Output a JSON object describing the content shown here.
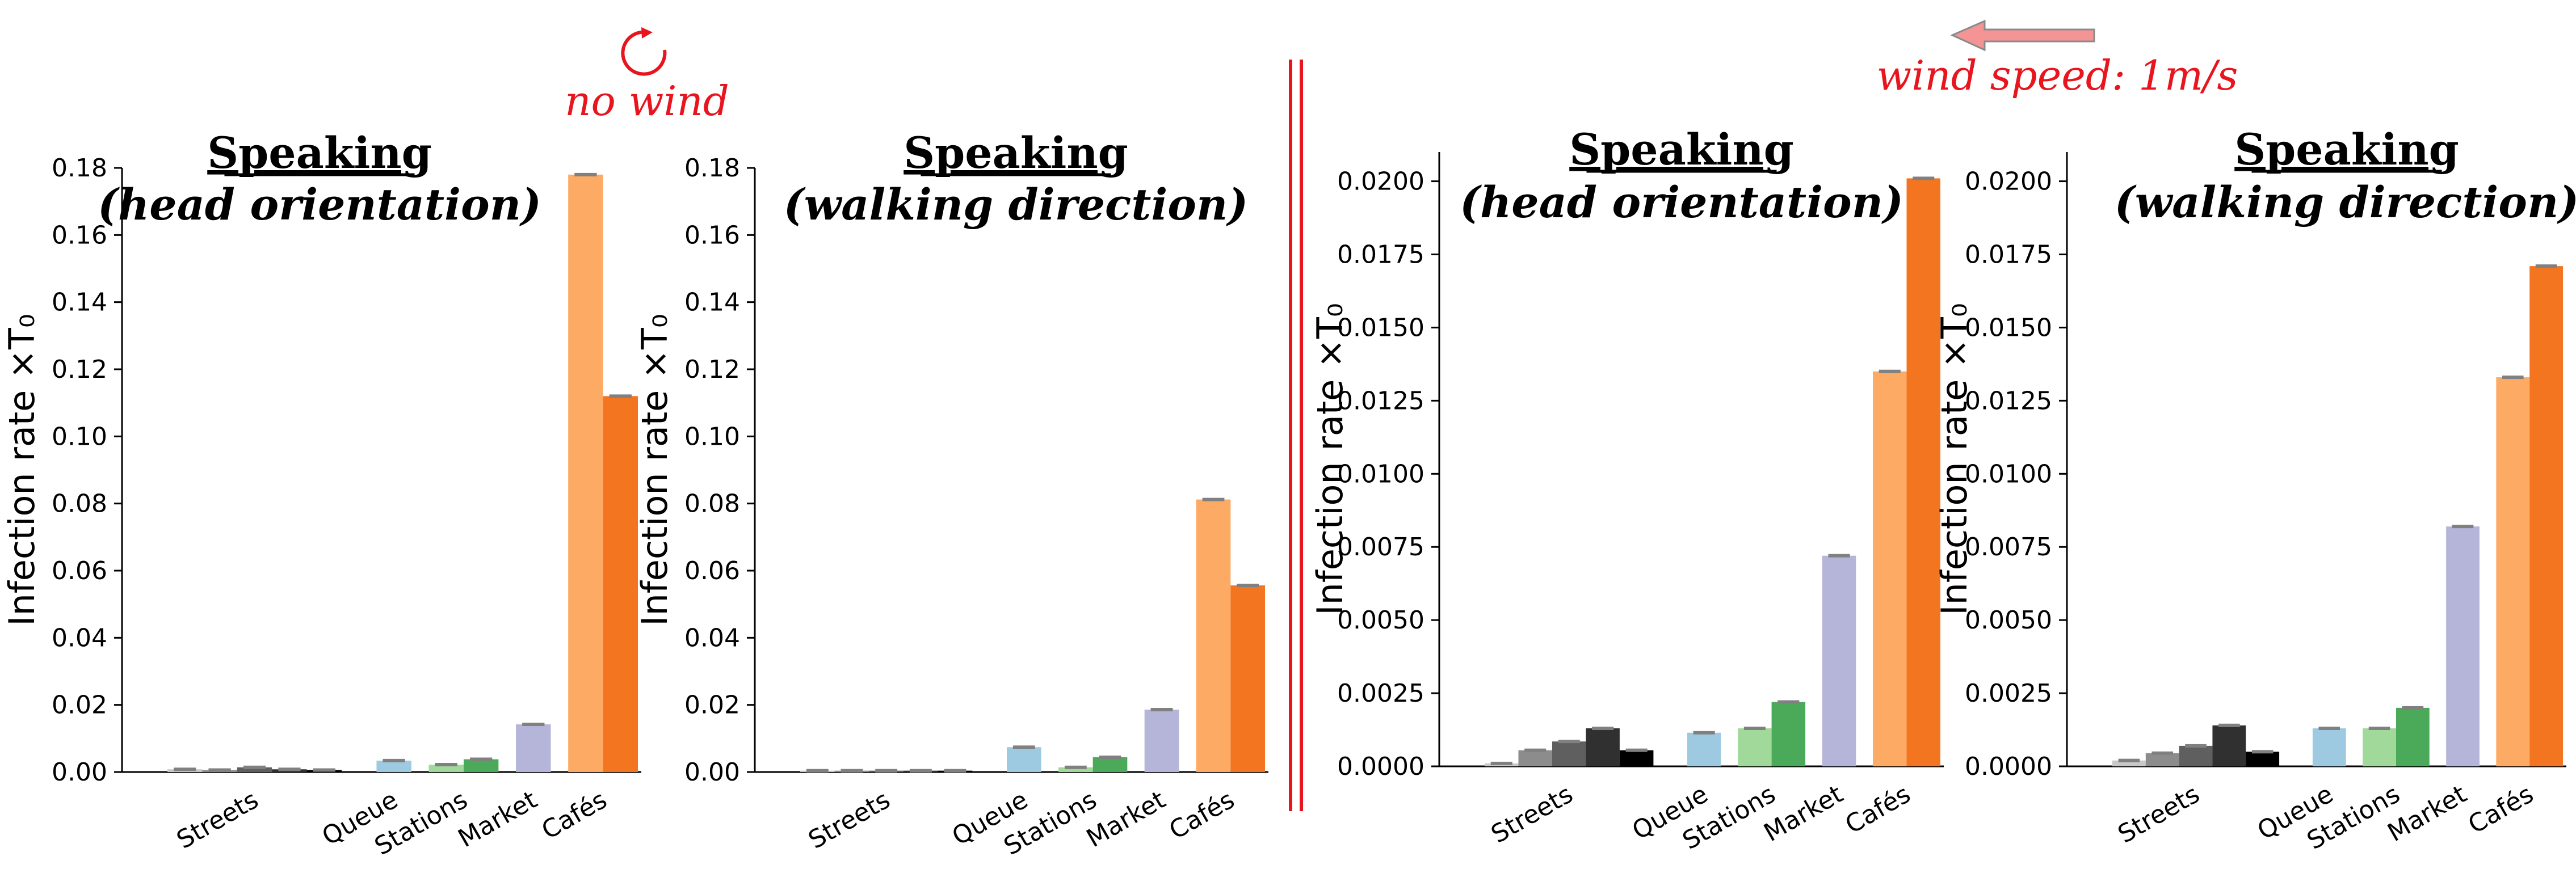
{
  "annotations": {
    "no_wind": "no wind",
    "wind_speed": "wind speed: 1m/s"
  },
  "colors": {
    "street_shades": [
      "#c8c8c8",
      "#8c8c8c",
      "#5f5f5f",
      "#303030",
      "#000000"
    ],
    "queue": "#9ecae1",
    "stations": [
      "#a1d99b",
      "#4aaa5a"
    ],
    "market": "#b5b5d9",
    "cafes": [
      "#fdaa65",
      "#f47520"
    ],
    "error_bar": "#808080",
    "annotation_red": "#e8141e",
    "arrow_fill": "#f49494"
  },
  "chart_data": [
    {
      "type": "bar",
      "panel": "no-wind-head-orientation",
      "title_line1": "Speaking",
      "title_line2": "(head orientation)",
      "ylabel": "Infection rate ×T₀",
      "ylim": [
        0,
        0.18
      ],
      "yticks": [
        "0.00",
        "0.02",
        "0.04",
        "0.06",
        "0.08",
        "0.10",
        "0.12",
        "0.14",
        "0.16",
        "0.18"
      ],
      "categories": [
        "Streets",
        "Queue",
        "Stations",
        "Market",
        "Cafés"
      ],
      "bars": [
        {
          "group": "Streets",
          "value": 0.0008
        },
        {
          "group": "Streets",
          "value": 0.0006
        },
        {
          "group": "Streets",
          "value": 0.0014
        },
        {
          "group": "Streets",
          "value": 0.0008
        },
        {
          "group": "Streets",
          "value": 0.0006
        },
        {
          "group": "Queue",
          "value": 0.0034
        },
        {
          "group": "Stations",
          "value": 0.0022
        },
        {
          "group": "Stations",
          "value": 0.0038
        },
        {
          "group": "Market",
          "value": 0.0142
        },
        {
          "group": "Cafés",
          "value": 0.178
        },
        {
          "group": "Cafés",
          "value": 0.112
        }
      ]
    },
    {
      "type": "bar",
      "panel": "no-wind-walking-direction",
      "title_line1": "Speaking",
      "title_line2": "(walking direction)",
      "ylabel": "Infection rate ×T₀",
      "ylim": [
        0,
        0.18
      ],
      "yticks": [
        "0.00",
        "0.02",
        "0.04",
        "0.06",
        "0.08",
        "0.10",
        "0.12",
        "0.14",
        "0.16",
        "0.18"
      ],
      "categories": [
        "Streets",
        "Queue",
        "Stations",
        "Market",
        "Cafés"
      ],
      "bars": [
        {
          "group": "Streets",
          "value": 0.0004
        },
        {
          "group": "Streets",
          "value": 0.0004
        },
        {
          "group": "Streets",
          "value": 0.0004
        },
        {
          "group": "Streets",
          "value": 0.0004
        },
        {
          "group": "Streets",
          "value": 0.0004
        },
        {
          "group": "Queue",
          "value": 0.0074
        },
        {
          "group": "Stations",
          "value": 0.0014
        },
        {
          "group": "Stations",
          "value": 0.0044
        },
        {
          "group": "Market",
          "value": 0.0186
        },
        {
          "group": "Cafés",
          "value": 0.0812
        },
        {
          "group": "Cafés",
          "value": 0.0556
        }
      ]
    },
    {
      "type": "bar",
      "panel": "wind-head-orientation",
      "title_line1": "Speaking",
      "title_line2": "(head orientation)",
      "ylabel": "Infection rate ×T₀",
      "ylim": [
        0,
        0.021
      ],
      "yticks": [
        "0.0000",
        "0.0025",
        "0.0050",
        "0.0075",
        "0.0100",
        "0.0125",
        "0.0150",
        "0.0175",
        "0.0200"
      ],
      "categories": [
        "Streets",
        "Queue",
        "Stations",
        "Market",
        "Cafés"
      ],
      "bars": [
        {
          "group": "Streets",
          "value": 0.0001
        },
        {
          "group": "Streets",
          "value": 0.00055
        },
        {
          "group": "Streets",
          "value": 0.00085
        },
        {
          "group": "Streets",
          "value": 0.0013
        },
        {
          "group": "Streets",
          "value": 0.00055
        },
        {
          "group": "Queue",
          "value": 0.00115
        },
        {
          "group": "Stations",
          "value": 0.0013
        },
        {
          "group": "Stations",
          "value": 0.0022
        },
        {
          "group": "Market",
          "value": 0.0072
        },
        {
          "group": "Cafés",
          "value": 0.0135
        },
        {
          "group": "Cafés",
          "value": 0.0201
        }
      ]
    },
    {
      "type": "bar",
      "panel": "wind-walking-direction",
      "title_line1": "Speaking",
      "title_line2": "(walking direction)",
      "ylabel": "Infection rate ×T₀",
      "ylim": [
        0,
        0.021
      ],
      "yticks": [
        "0.0000",
        "0.0025",
        "0.0050",
        "0.0075",
        "0.0100",
        "0.0125",
        "0.0150",
        "0.0175",
        "0.0200"
      ],
      "categories": [
        "Streets",
        "Queue",
        "Stations",
        "Market",
        "Cafés"
      ],
      "bars": [
        {
          "group": "Streets",
          "value": 0.0002
        },
        {
          "group": "Streets",
          "value": 0.00045
        },
        {
          "group": "Streets",
          "value": 0.0007
        },
        {
          "group": "Streets",
          "value": 0.0014
        },
        {
          "group": "Streets",
          "value": 0.0005
        },
        {
          "group": "Queue",
          "value": 0.0013
        },
        {
          "group": "Stations",
          "value": 0.0013
        },
        {
          "group": "Stations",
          "value": 0.002
        },
        {
          "group": "Market",
          "value": 0.0082
        },
        {
          "group": "Cafés",
          "value": 0.0133
        },
        {
          "group": "Cafés",
          "value": 0.0171
        }
      ]
    }
  ]
}
